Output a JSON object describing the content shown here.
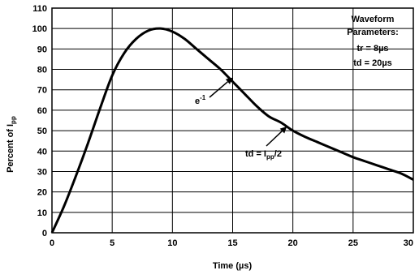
{
  "chart_data": {
    "type": "line",
    "xlabel": "Time (µs)",
    "ylabel_main": "Percent of I",
    "ylabel_sub": "pp",
    "xlim": [
      0,
      30
    ],
    "ylim": [
      0,
      110
    ],
    "xticks": [
      0,
      5,
      10,
      15,
      20,
      25,
      30
    ],
    "yticks": [
      0,
      10,
      20,
      30,
      40,
      50,
      60,
      70,
      80,
      90,
      100,
      110
    ],
    "grid": true,
    "series": [
      {
        "x": [
          0,
          1,
          2,
          3,
          4,
          5,
          6,
          7,
          8,
          9,
          10,
          11,
          12,
          13,
          14,
          15,
          16,
          17,
          18,
          19,
          20,
          21,
          22,
          23,
          24,
          25,
          26,
          27,
          28,
          29,
          30
        ],
        "y": [
          0,
          13,
          28,
          44,
          61,
          77,
          88,
          95,
          99,
          100,
          98.5,
          95,
          90,
          85,
          80,
          74,
          68,
          62,
          57,
          54,
          50,
          47,
          44.5,
          42,
          39.5,
          37,
          35,
          33,
          31,
          29,
          26
        ]
      }
    ],
    "annotations": {
      "e_base": "e",
      "e_exp": "-1",
      "half_prefix": "td = I",
      "half_sub": "pp",
      "half_suffix": "/2",
      "arrow_e_target": [
        15,
        76
      ],
      "arrow_half_target": [
        19.5,
        52
      ]
    },
    "parameters_box": {
      "line1": "Waveform",
      "line2": "Parameters:",
      "line3": "tr = 8µs",
      "line4": "td = 20µs"
    }
  },
  "colors": {
    "line": "#000000",
    "grid": "#000000",
    "background": "#ffffff"
  }
}
